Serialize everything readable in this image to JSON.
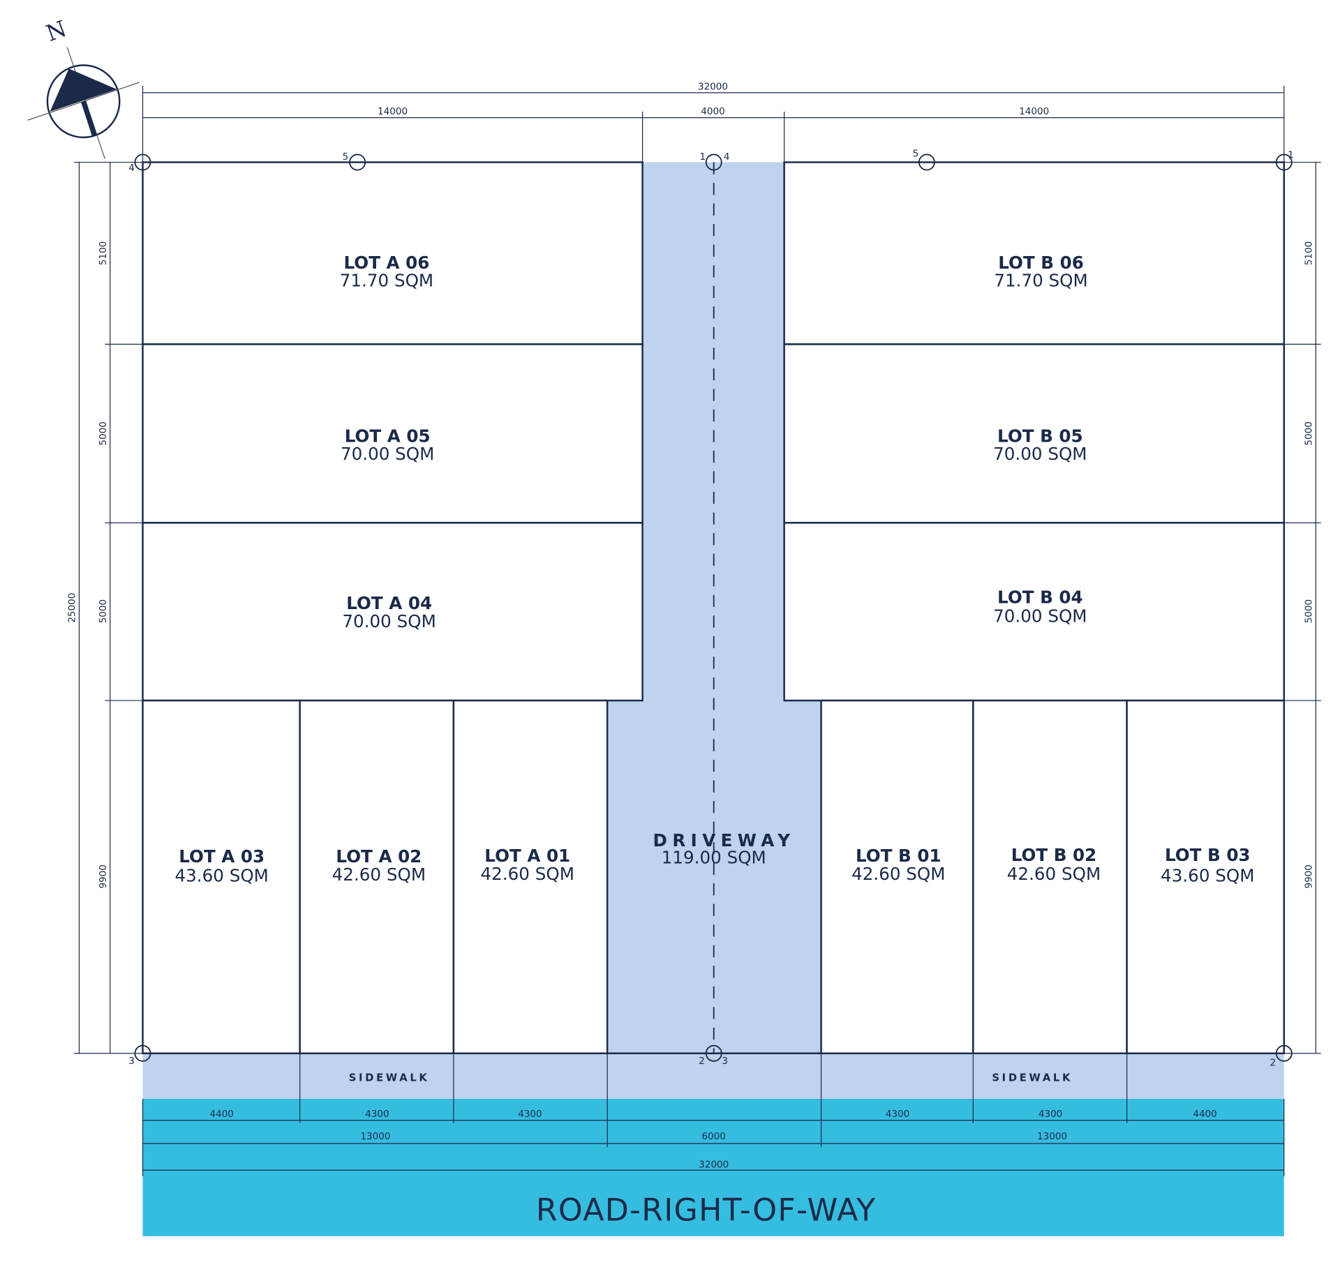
{
  "north": "N",
  "lots": [
    {
      "label": "LOT A 06",
      "area": "71.70 SQM"
    },
    {
      "label": "LOT A 05",
      "area": "70.00 SQM"
    },
    {
      "label": "LOT A 04",
      "area": "70.00 SQM"
    },
    {
      "label": "LOT A 03",
      "area": "43.60 SQM"
    },
    {
      "label": "LOT A 02",
      "area": "42.60 SQM"
    },
    {
      "label": "LOT A 01",
      "area": "42.60 SQM"
    },
    {
      "label": "LOT B 06",
      "area": "71.70 SQM"
    },
    {
      "label": "LOT B 05",
      "area": "70.00 SQM"
    },
    {
      "label": "LOT B 04",
      "area": "70.00 SQM"
    },
    {
      "label": "LOT B 01",
      "area": "42.60 SQM"
    },
    {
      "label": "LOT B 02",
      "area": "42.60 SQM"
    },
    {
      "label": "LOT B 03",
      "area": "43.60 SQM"
    }
  ],
  "driveway": {
    "label": "DRIVEWAY",
    "area": "119.00 SQM"
  },
  "sidewalk": [
    "SIDEWALK",
    "SIDEWALK"
  ],
  "road": "ROAD-RIGHT-OF-WAY",
  "dimensions": {
    "top_total": 32000,
    "top": [
      14000,
      4000,
      14000
    ],
    "left_total": 25000,
    "left": [
      5100,
      5000,
      5000,
      9900
    ],
    "right": [
      5100,
      5000,
      5000,
      9900
    ],
    "bottom": [
      4400,
      4300,
      4300,
      4300,
      4300,
      4400
    ],
    "bottom_mid": [
      13000,
      6000,
      13000
    ],
    "bottom_total": 32000
  },
  "points": [
    4,
    5,
    1,
    4,
    5,
    1,
    3,
    2,
    3,
    2
  ]
}
